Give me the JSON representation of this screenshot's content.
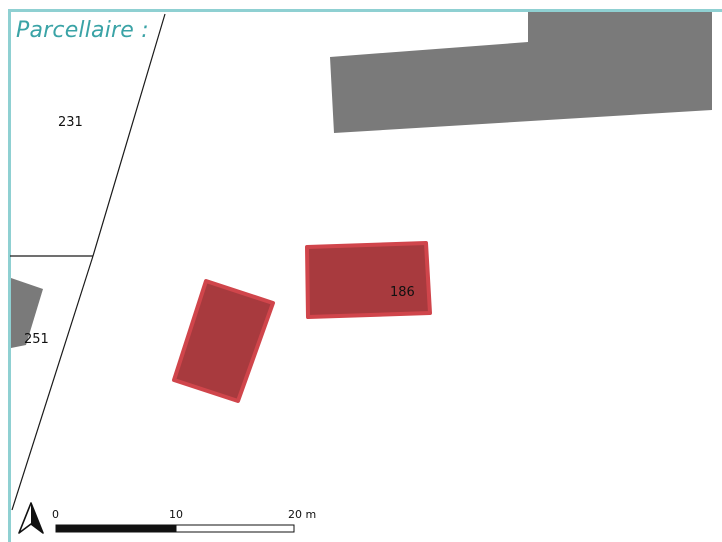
{
  "map": {
    "title": "Parcellaire :",
    "parcels": [
      {
        "id": "231"
      },
      {
        "id": "251"
      },
      {
        "id": "186"
      }
    ],
    "scale_bar": {
      "ticks": [
        "0",
        "10",
        "20 m"
      ],
      "unit": "m"
    },
    "colors": {
      "frame": "#8fd0d2",
      "title": "#3aa3a6",
      "existing_building": "#7a7a7a",
      "project_building_fill": "#a83a3e",
      "project_building_stroke": "#d0454b",
      "parcel_line": "#1a1a1a"
    },
    "icons": {
      "north_arrow": "north-arrow-icon"
    }
  }
}
